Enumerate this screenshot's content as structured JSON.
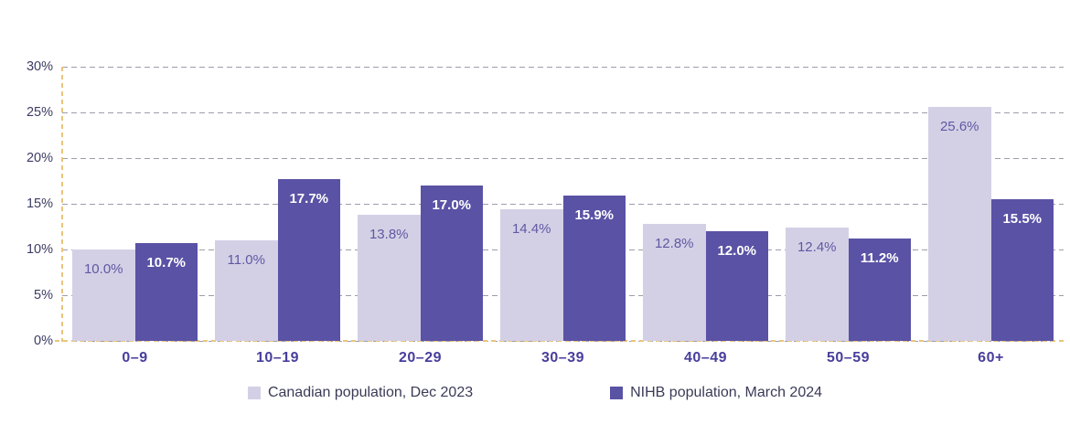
{
  "chart_data": {
    "type": "bar",
    "title": "",
    "categories": [
      "0–9",
      "10–19",
      "20–29",
      "30–39",
      "40–49",
      "50–59",
      "60+"
    ],
    "series": [
      {
        "name": "Canadian population, Dec 2023",
        "color": "#d3d0e6",
        "label_color": "#5f58a1",
        "label_bold": false,
        "values": [
          10.0,
          11.0,
          13.8,
          14.4,
          12.8,
          12.4,
          25.6
        ]
      },
      {
        "name": "NIHB population, March 2024",
        "color": "#5a52a5",
        "label_color": "#ffffff",
        "label_bold": true,
        "values": [
          10.7,
          17.7,
          17.0,
          15.9,
          12.0,
          11.2,
          15.5
        ]
      }
    ],
    "value_suffix": "%",
    "y_ticks": [
      "0%",
      "5%",
      "10%",
      "15%",
      "20%",
      "25%",
      "30%"
    ],
    "y_tick_step": 5,
    "ylim": [
      0,
      30
    ],
    "grid": "horizontal-dashed",
    "legend_position": "bottom"
  },
  "colors": {
    "grid_line": "#9d9dab",
    "axis_line": "#e9c47c",
    "y_tick_label": "#3c3c64",
    "category_label": "#473e9d",
    "legend_text": "#3a3a57",
    "background": "#ffffff"
  }
}
